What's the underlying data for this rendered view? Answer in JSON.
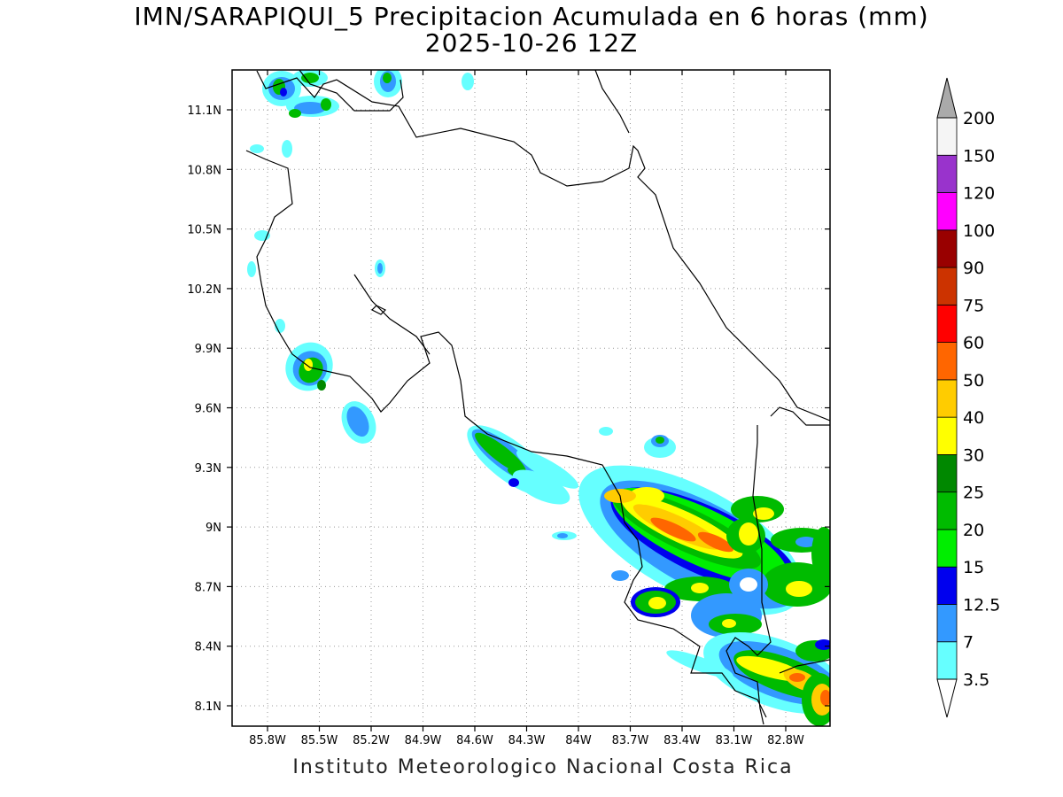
{
  "title": {
    "line1": "IMN/SARAPIQUI_5 Precipitacion Acumulada en 6 horas (mm)",
    "line2": "2025-10-26 12Z"
  },
  "footer": "Instituto Meteorologico Nacional Costa Rica",
  "axes": {
    "x_ticks": [
      "85.8W",
      "85.5W",
      "85.2W",
      "84.9W",
      "84.6W",
      "84.3W",
      "84W",
      "83.7W",
      "83.4W",
      "83.1W",
      "82.8W"
    ],
    "y_ticks": [
      "11.1N",
      "10.8N",
      "10.5N",
      "10.2N",
      "9.9N",
      "9.6N",
      "9.3N",
      "9N",
      "8.7N",
      "8.4N",
      "8.1N"
    ],
    "grid": "dotted"
  },
  "colorbar": {
    "levels": [
      "3.5",
      "7",
      "12.5",
      "15",
      "20",
      "25",
      "30",
      "40",
      "50",
      "60",
      "75",
      "90",
      "100",
      "120",
      "150",
      "200"
    ],
    "colors": [
      "#66ffff",
      "#3399ff",
      "#0000ee",
      "#00ee00",
      "#00bb00",
      "#008800",
      "#ffff00",
      "#ffcc00",
      "#ff6600",
      "#ff0000",
      "#cc3300",
      "#990000",
      "#ff00ff",
      "#9933cc",
      "#f5f5f5"
    ],
    "over_color": "#aaaaaa"
  },
  "icons": {
    "coastline": "coastline-map-lines",
    "precip": "precipitation-shaded-contours"
  }
}
